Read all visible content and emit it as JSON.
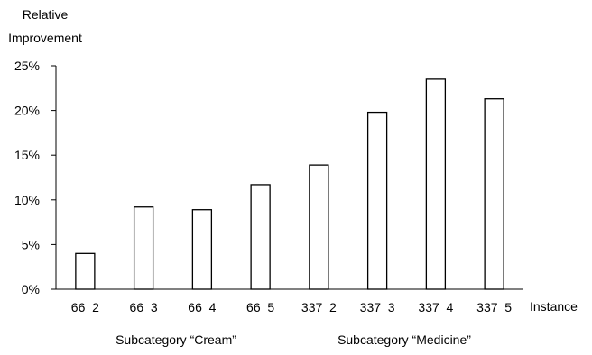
{
  "chart_data": {
    "type": "bar",
    "ylabel": "Relative Improvement",
    "xlabel": "Instance",
    "categories": [
      "66_2",
      "66_3",
      "66_4",
      "66_5",
      "337_2",
      "337_3",
      "337_4",
      "337_5"
    ],
    "values": [
      4.0,
      9.2,
      8.9,
      11.7,
      13.9,
      19.8,
      23.5,
      21.3
    ],
    "ylim": [
      0,
      25
    ],
    "yticks": [
      "0%",
      "5%",
      "10%",
      "15%",
      "20%",
      "25%"
    ],
    "group_labels": [
      "Subcategory “Cream”",
      "Subcategory “Medicine”"
    ],
    "grid": false,
    "bar_fill": "#ffffff",
    "bar_stroke": "#000000"
  }
}
